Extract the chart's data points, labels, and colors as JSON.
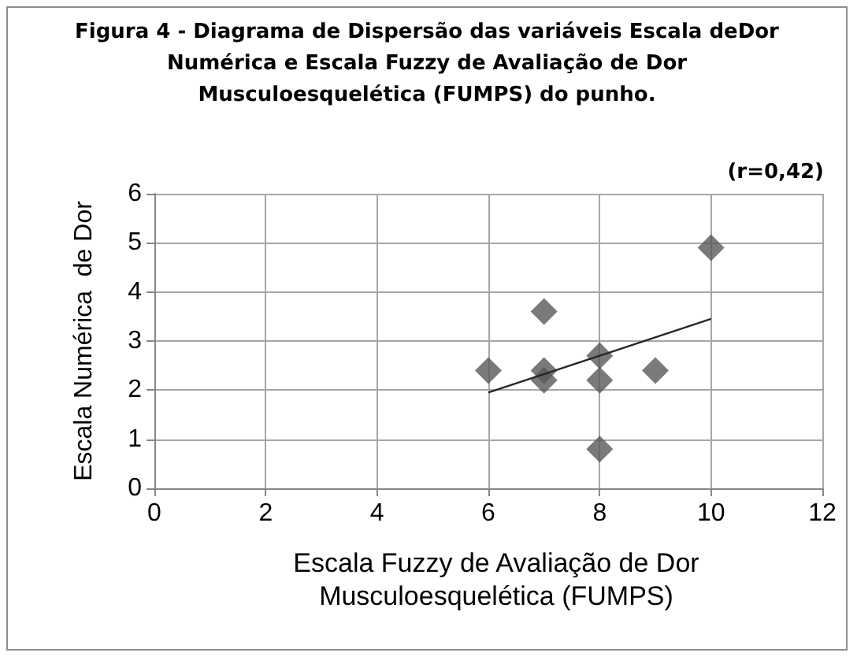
{
  "chart_data": {
    "type": "scatter",
    "title": "Figura 4 - Diagrama de Dispersão das variáveis Escala deDor Numérica e Escala Fuzzy de Avaliação de Dor Musculoesquelética (FUMPS) do punho.",
    "xlabel": "Escala Fuzzy  de Avaliação de Dor Musculoesquelética (FUMPS)",
    "ylabel": "Escala Numérica  de Dor",
    "annotations": [
      "(r=0,42)"
    ],
    "series": [
      {
        "color": "#595959",
        "x": [
          6,
          7,
          7,
          7,
          8,
          8,
          8,
          9,
          10
        ],
        "values": [
          2.4,
          3.6,
          2.4,
          2.2,
          2.7,
          2.2,
          0.8,
          2.4,
          4.9
        ]
      },
      {
        "type": "line",
        "color": "#262626",
        "x": [
          6,
          10
        ],
        "values": [
          1.95,
          3.45
        ],
        "marker": "none"
      }
    ],
    "xlim": [
      0,
      12
    ],
    "xticks": [
      0,
      2,
      4,
      6,
      8,
      10,
      12
    ],
    "ylim": [
      0,
      6
    ],
    "yticks": [
      0,
      1,
      2,
      3,
      4,
      5,
      6
    ],
    "grid": true,
    "marker": "diamond"
  }
}
